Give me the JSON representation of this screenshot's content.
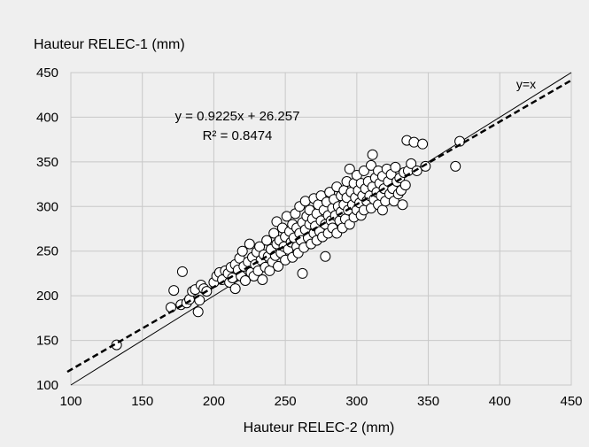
{
  "chart_data": {
    "type": "scatter",
    "xlabel": "Hauteur RELEC-2 (mm)",
    "ylabel": "Hauteur RELEC-1 (mm)",
    "xlim": [
      100,
      450
    ],
    "ylim": [
      100,
      450
    ],
    "x_ticks": [
      "100",
      "150",
      "200",
      "250",
      "300",
      "350",
      "400",
      "450"
    ],
    "y_ticks": [
      "100",
      "150",
      "200",
      "250",
      "300",
      "350",
      "400",
      "450"
    ],
    "grid": true,
    "legend": "none",
    "annotations": {
      "equation": "y = 0.9225x + 26.257",
      "r_squared": "R² = 0.8474",
      "identity_label": "y=x"
    },
    "trendline": {
      "slope": 0.9225,
      "intercept": 26.257
    },
    "identity_line": {
      "slope": 1,
      "intercept": 0
    },
    "colors": {
      "background": "#efefef",
      "plot_area": "#efefef",
      "grid": "#c8c8c8",
      "marker_fill": "#ffffff",
      "marker_stroke": "#000000"
    },
    "points": [
      [
        132,
        145
      ],
      [
        170,
        187
      ],
      [
        172,
        206
      ],
      [
        177,
        190
      ],
      [
        178,
        227
      ],
      [
        181,
        192
      ],
      [
        183,
        196
      ],
      [
        185,
        205
      ],
      [
        187,
        207
      ],
      [
        189,
        182
      ],
      [
        190,
        195
      ],
      [
        191,
        212
      ],
      [
        193,
        208
      ],
      [
        195,
        205
      ],
      [
        200,
        215
      ],
      [
        202,
        222
      ],
      [
        204,
        226
      ],
      [
        206,
        218
      ],
      [
        208,
        228
      ],
      [
        210,
        225
      ],
      [
        211,
        215
      ],
      [
        212,
        232
      ],
      [
        213,
        220
      ],
      [
        215,
        235
      ],
      [
        215,
        208
      ],
      [
        217,
        229
      ],
      [
        218,
        242
      ],
      [
        219,
        222
      ],
      [
        220,
        250
      ],
      [
        221,
        233
      ],
      [
        222,
        217
      ],
      [
        224,
        238
      ],
      [
        225,
        258
      ],
      [
        226,
        226
      ],
      [
        227,
        243
      ],
      [
        228,
        222
      ],
      [
        229,
        235
      ],
      [
        230,
        249
      ],
      [
        231,
        228
      ],
      [
        232,
        255
      ],
      [
        233,
        240
      ],
      [
        234,
        218
      ],
      [
        235,
        246
      ],
      [
        236,
        232
      ],
      [
        237,
        262
      ],
      [
        238,
        244
      ],
      [
        239,
        228
      ],
      [
        240,
        252
      ],
      [
        241,
        238
      ],
      [
        242,
        270
      ],
      [
        243,
        245
      ],
      [
        244,
        258
      ],
      [
        244,
        283
      ],
      [
        245,
        233
      ],
      [
        246,
        262
      ],
      [
        247,
        248
      ],
      [
        248,
        276
      ],
      [
        249,
        255
      ],
      [
        250,
        240
      ],
      [
        250,
        266
      ],
      [
        251,
        289
      ],
      [
        252,
        252
      ],
      [
        253,
        272
      ],
      [
        254,
        260
      ],
      [
        255,
        243
      ],
      [
        255,
        280
      ],
      [
        256,
        265
      ],
      [
        257,
        292
      ],
      [
        258,
        255
      ],
      [
        258,
        276
      ],
      [
        259,
        248
      ],
      [
        260,
        270
      ],
      [
        260,
        300
      ],
      [
        261,
        262
      ],
      [
        262,
        282
      ],
      [
        262,
        225
      ],
      [
        263,
        254
      ],
      [
        264,
        274
      ],
      [
        264,
        306
      ],
      [
        265,
        289
      ],
      [
        266,
        265
      ],
      [
        267,
        280
      ],
      [
        267,
        296
      ],
      [
        268,
        258
      ],
      [
        269,
        286
      ],
      [
        270,
        270
      ],
      [
        270,
        309
      ],
      [
        271,
        278
      ],
      [
        272,
        292
      ],
      [
        272,
        262
      ],
      [
        273,
        302
      ],
      [
        274,
        272
      ],
      [
        275,
        284
      ],
      [
        275,
        312
      ],
      [
        276,
        266
      ],
      [
        277,
        296
      ],
      [
        278,
        244
      ],
      [
        278,
        280
      ],
      [
        279,
        305
      ],
      [
        280,
        270
      ],
      [
        280,
        290
      ],
      [
        281,
        316
      ],
      [
        282,
        284
      ],
      [
        283,
        298
      ],
      [
        283,
        276
      ],
      [
        284,
        308
      ],
      [
        285,
        290
      ],
      [
        286,
        270
      ],
      [
        286,
        322
      ],
      [
        287,
        300
      ],
      [
        288,
        284
      ],
      [
        289,
        312
      ],
      [
        289,
        294
      ],
      [
        290,
        276
      ],
      [
        291,
        318
      ],
      [
        291,
        302
      ],
      [
        292,
        286
      ],
      [
        293,
        328
      ],
      [
        293,
        310
      ],
      [
        294,
        296
      ],
      [
        295,
        280
      ],
      [
        295,
        342
      ],
      [
        296,
        316
      ],
      [
        297,
        302
      ],
      [
        298,
        288
      ],
      [
        298,
        326
      ],
      [
        299,
        310
      ],
      [
        300,
        296
      ],
      [
        300,
        335
      ],
      [
        301,
        318
      ],
      [
        302,
        304
      ],
      [
        303,
        290
      ],
      [
        303,
        326
      ],
      [
        304,
        312
      ],
      [
        305,
        296
      ],
      [
        305,
        340
      ],
      [
        306,
        320
      ],
      [
        307,
        306
      ],
      [
        308,
        328
      ],
      [
        309,
        312
      ],
      [
        310,
        298
      ],
      [
        310,
        346
      ],
      [
        311,
        358
      ],
      [
        311,
        322
      ],
      [
        312,
        308
      ],
      [
        313,
        332
      ],
      [
        314,
        316
      ],
      [
        315,
        302
      ],
      [
        315,
        340
      ],
      [
        316,
        326
      ],
      [
        317,
        312
      ],
      [
        318,
        296
      ],
      [
        318,
        334
      ],
      [
        319,
        320
      ],
      [
        320,
        306
      ],
      [
        321,
        342
      ],
      [
        322,
        328
      ],
      [
        323,
        314
      ],
      [
        324,
        336
      ],
      [
        325,
        320
      ],
      [
        326,
        306
      ],
      [
        327,
        344
      ],
      [
        328,
        328
      ],
      [
        329,
        314
      ],
      [
        330,
        332
      ],
      [
        331,
        318
      ],
      [
        332,
        302
      ],
      [
        333,
        338
      ],
      [
        334,
        324
      ],
      [
        335,
        374
      ],
      [
        336,
        340
      ],
      [
        338,
        348
      ],
      [
        340,
        372
      ],
      [
        342,
        340
      ],
      [
        346,
        370
      ],
      [
        348,
        345
      ],
      [
        369,
        345
      ],
      [
        372,
        373
      ]
    ]
  }
}
